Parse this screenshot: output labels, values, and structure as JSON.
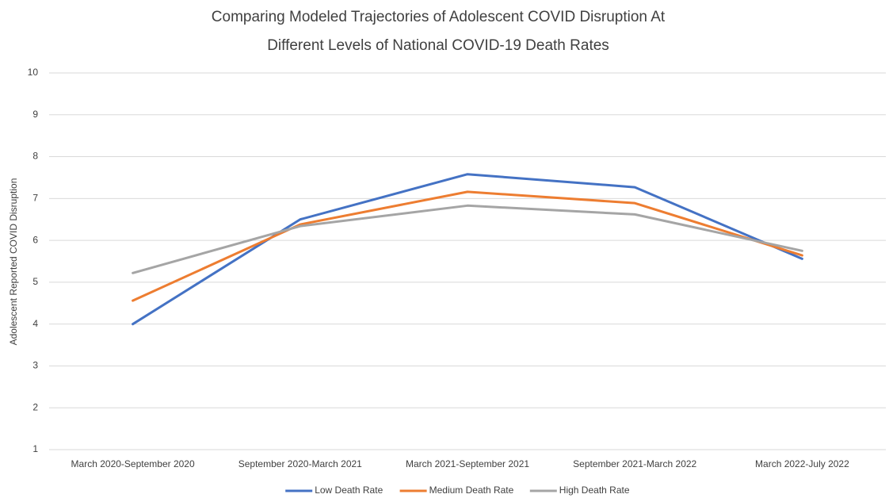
{
  "chart_data": {
    "type": "line",
    "title": [
      "Comparing Modeled Trajectories of Adolescent COVID Disruption At",
      "Different Levels of National COVID-19 Death Rates"
    ],
    "y_label": "Adolescent Reported COVID Disruption",
    "categories": [
      "March 2020-September 2020",
      "September 2020-March 2021",
      "March 2021-September 2021",
      "September 2021-March 2022",
      "March 2022-July 2022"
    ],
    "series": [
      {
        "name": "Low Death Rate",
        "color": "#4472c4",
        "values": [
          4.0,
          6.5,
          7.58,
          7.27,
          5.56
        ]
      },
      {
        "name": "Medium Death Rate",
        "color": "#ed7d31",
        "values": [
          4.56,
          6.38,
          7.16,
          6.89,
          5.64
        ]
      },
      {
        "name": "High Death Rate",
        "color": "#a5a5a5",
        "values": [
          5.22,
          6.34,
          6.83,
          6.62,
          5.75
        ]
      }
    ],
    "ylim": [
      1,
      10
    ],
    "yticks": [
      1,
      2,
      3,
      4,
      5,
      6,
      7,
      8,
      9,
      10
    ],
    "grid": true,
    "legend": "bottom"
  }
}
